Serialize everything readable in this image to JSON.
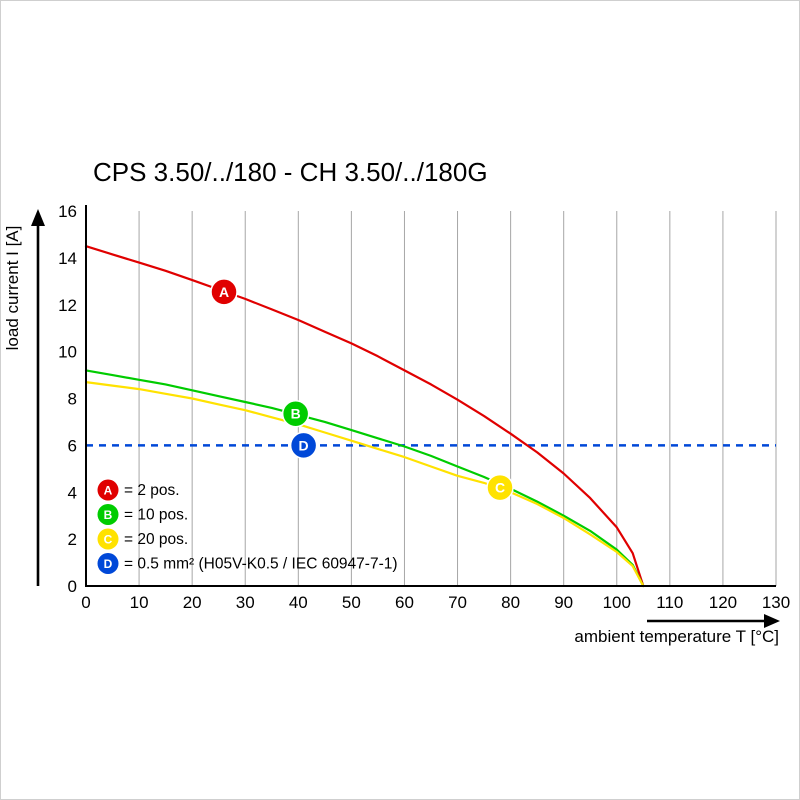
{
  "page": {
    "background": "#ffffff",
    "border_color": "#cfcfcf"
  },
  "title": "CPS 3.50/../180 - CH 3.50/../180G",
  "chart_data": {
    "type": "line",
    "title": "CPS 3.50/../180 - CH 3.50/../180G",
    "xlabel": "ambient temperature T [°C]",
    "ylabel": "load current I [A]",
    "xlim": [
      0,
      130
    ],
    "ylim": [
      0,
      16
    ],
    "xticks": [
      0,
      10,
      20,
      30,
      40,
      50,
      60,
      70,
      80,
      90,
      100,
      110,
      120,
      130
    ],
    "yticks": [
      0,
      2,
      4,
      6,
      8,
      10,
      12,
      14,
      16
    ],
    "grid": "vertical-only",
    "grid_color": "#a6a6a6",
    "axis_color": "#000000",
    "reference_line": {
      "name": "D",
      "y": 6,
      "style": "dashed",
      "color": "#0048d8",
      "label": "= 0.5 mm² (H05V-K0.5 / IEC 60947-7-1)",
      "marker_at": [
        41,
        6
      ]
    },
    "series": [
      {
        "name": "A",
        "label": "= 2 pos.",
        "color": "#e00000",
        "marker_at": [
          26,
          12.55
        ],
        "x": [
          0,
          5,
          10,
          15,
          20,
          25,
          30,
          35,
          40,
          45,
          50,
          55,
          60,
          65,
          70,
          75,
          80,
          85,
          90,
          95,
          100,
          103,
          105
        ],
        "y": [
          14.5,
          14.15,
          13.8,
          13.45,
          13.05,
          12.65,
          12.25,
          11.8,
          11.35,
          10.85,
          10.35,
          9.8,
          9.2,
          8.6,
          7.95,
          7.25,
          6.5,
          5.7,
          4.8,
          3.75,
          2.5,
          1.4,
          0
        ]
      },
      {
        "name": "B",
        "label": "= 10 pos.",
        "color": "#00cc00",
        "marker_at": [
          39.5,
          7.35
        ],
        "x": [
          0,
          5,
          10,
          15,
          20,
          25,
          30,
          35,
          40,
          45,
          50,
          55,
          60,
          65,
          70,
          75,
          80,
          85,
          90,
          95,
          100,
          103,
          105
        ],
        "y": [
          9.2,
          9.0,
          8.8,
          8.6,
          8.35,
          8.1,
          7.85,
          7.6,
          7.3,
          7.0,
          6.65,
          6.3,
          5.95,
          5.55,
          5.1,
          4.65,
          4.15,
          3.6,
          3.0,
          2.35,
          1.55,
          0.9,
          0
        ]
      },
      {
        "name": "C",
        "label": "= 20 pos.",
        "color": "#ffe200",
        "marker_at": [
          78,
          4.2
        ],
        "x": [
          0,
          5,
          10,
          15,
          20,
          25,
          30,
          35,
          40,
          45,
          50,
          55,
          60,
          65,
          70,
          75,
          80,
          85,
          90,
          95,
          100,
          103,
          105
        ],
        "y": [
          8.7,
          8.55,
          8.4,
          8.2,
          8.0,
          7.75,
          7.5,
          7.2,
          6.9,
          6.55,
          6.2,
          5.85,
          5.5,
          5.1,
          4.7,
          4.4,
          4.0,
          3.5,
          2.9,
          2.2,
          1.45,
          0.85,
          0
        ]
      }
    ],
    "legend": {
      "position": "inside-bottom-left",
      "items": [
        {
          "letter": "A",
          "label": "= 2 pos.",
          "color": "#e00000"
        },
        {
          "letter": "B",
          "label": "= 10 pos.",
          "color": "#00cc00"
        },
        {
          "letter": "C",
          "label": "= 20 pos.",
          "color": "#ffe200"
        },
        {
          "letter": "D",
          "label": "= 0.5 mm² (H05V-K0.5 / IEC 60947-7-1)",
          "color": "#0048d8"
        }
      ]
    }
  }
}
